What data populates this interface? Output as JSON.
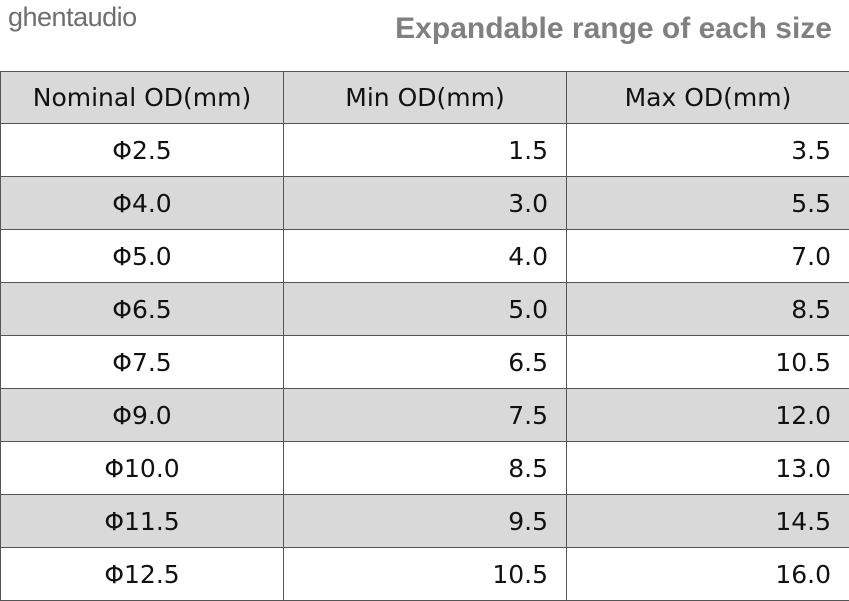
{
  "header": {
    "brand": "ghentaudio",
    "title": "Expandable range of each size"
  },
  "table": {
    "columns": [
      "Nominal OD(mm)",
      "Min OD(mm)",
      "Max OD(mm)"
    ],
    "rows": [
      [
        "Φ2.5",
        "1.5",
        "3.5"
      ],
      [
        "Φ4.0",
        "3.0",
        "5.5"
      ],
      [
        "Φ5.0",
        "4.0",
        "7.0"
      ],
      [
        "Φ6.5",
        "5.0",
        "8.5"
      ],
      [
        "Φ7.5",
        "6.5",
        "10.5"
      ],
      [
        "Φ9.0",
        "7.5",
        "12.0"
      ],
      [
        "Φ10.0",
        "8.5",
        "13.0"
      ],
      [
        "Φ11.5",
        "9.5",
        "14.5"
      ],
      [
        "Φ12.5",
        "10.5",
        "16.0"
      ]
    ]
  }
}
